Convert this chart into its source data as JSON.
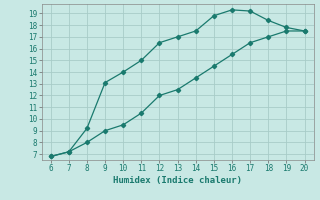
{
  "xlabel": "Humidex (Indice chaleur)",
  "xlim": [
    5.5,
    20.5
  ],
  "ylim": [
    6.5,
    19.8
  ],
  "xticks": [
    6,
    7,
    8,
    9,
    10,
    11,
    12,
    13,
    14,
    15,
    16,
    17,
    18,
    19,
    20
  ],
  "yticks": [
    7,
    8,
    9,
    10,
    11,
    12,
    13,
    14,
    15,
    16,
    17,
    18,
    19
  ],
  "line1_x": [
    6,
    7,
    8,
    9,
    10,
    11,
    12,
    13,
    14,
    15,
    16,
    17,
    18,
    19,
    20
  ],
  "line1_y": [
    6.8,
    7.2,
    9.2,
    13.1,
    14.0,
    15.0,
    16.5,
    17.0,
    17.5,
    18.8,
    19.3,
    19.2,
    18.4,
    17.8,
    17.5
  ],
  "line2_x": [
    6,
    7,
    8,
    9,
    10,
    11,
    12,
    13,
    14,
    15,
    16,
    17,
    18,
    19,
    20
  ],
  "line2_y": [
    6.8,
    7.2,
    8.0,
    9.0,
    9.5,
    10.5,
    12.0,
    12.5,
    13.5,
    14.5,
    15.5,
    16.5,
    17.0,
    17.5,
    17.5
  ],
  "line_color": "#1a7a6e",
  "bg_color": "#c8e8e4",
  "grid_color": "#a8ccc8",
  "marker": "D",
  "marker_size": 2.2,
  "line_width": 0.9,
  "tick_fontsize": 5.5,
  "label_fontsize": 6.5
}
